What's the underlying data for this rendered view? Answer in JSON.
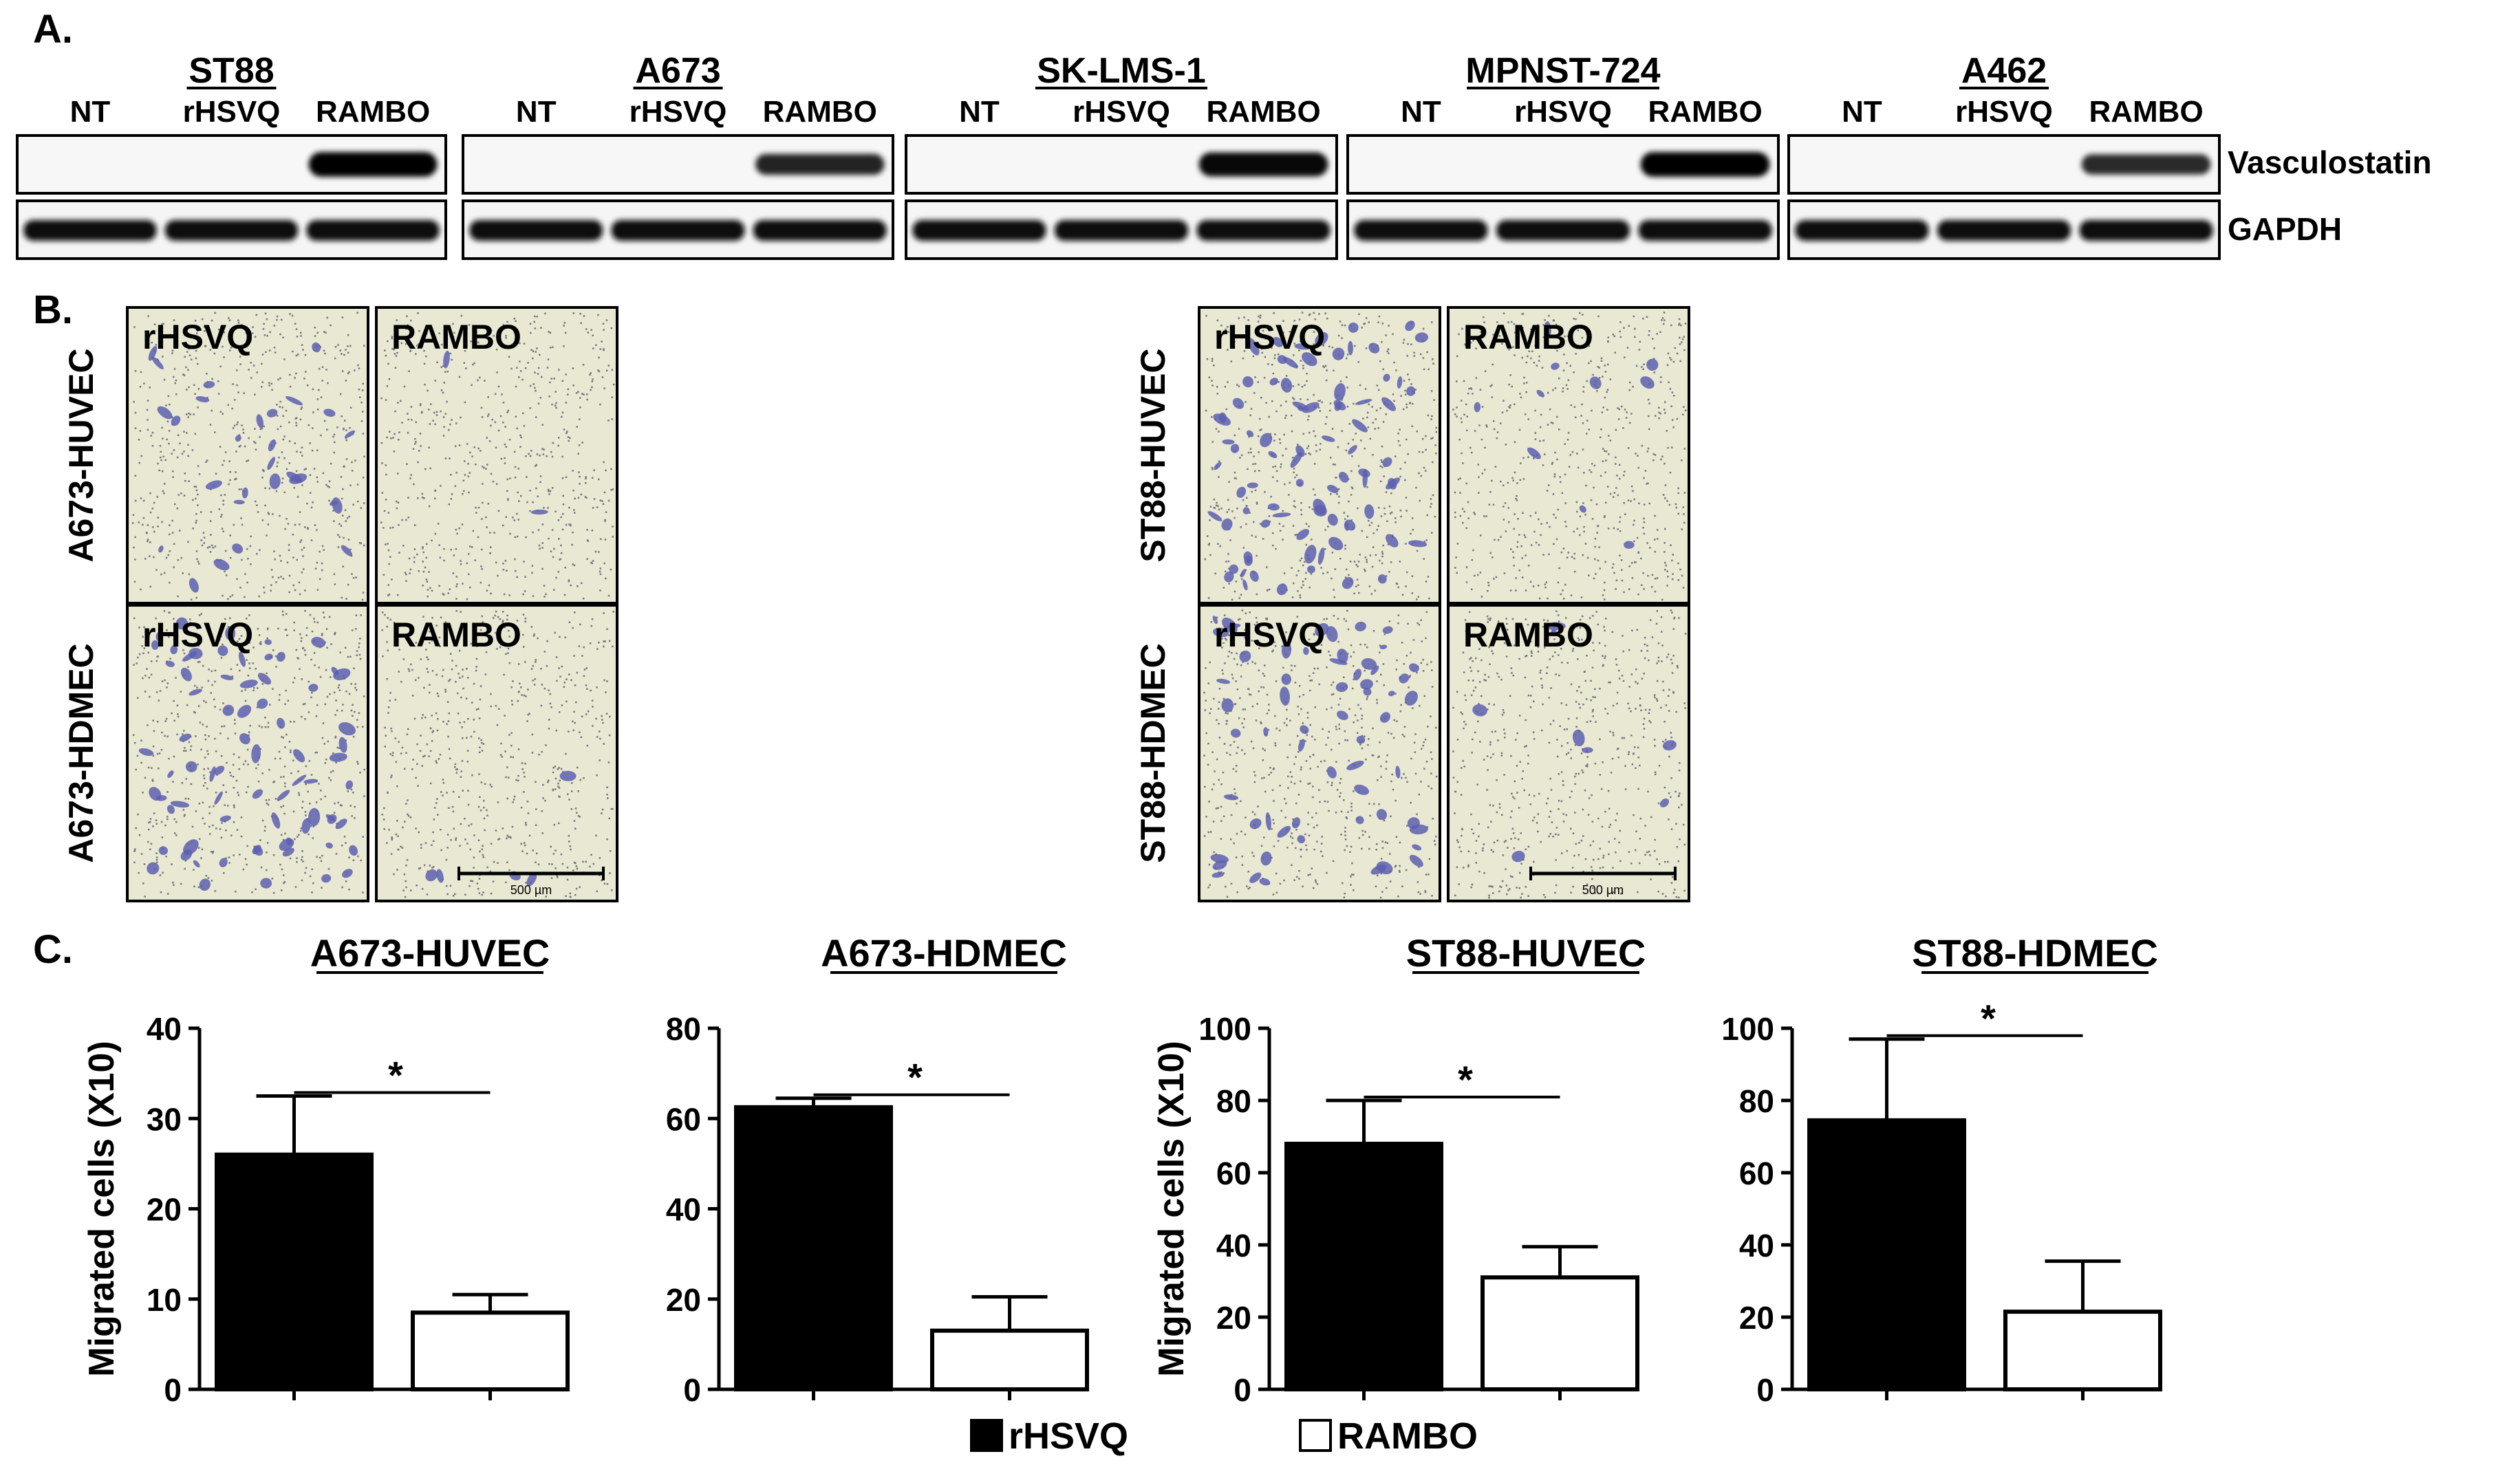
{
  "panel_a": {
    "letter": "A.",
    "blots": [
      {
        "cell_line": "ST88",
        "lanes": [
          "NT",
          "rHSVQ",
          "RAMBO"
        ],
        "vasculostatin_band": [
          0,
          0,
          1.0
        ]
      },
      {
        "cell_line": "A673",
        "lanes": [
          "NT",
          "rHSVQ",
          "RAMBO"
        ],
        "vasculostatin_band": [
          0,
          0,
          0.75
        ]
      },
      {
        "cell_line": "SK-LMS-1",
        "lanes": [
          "NT",
          "rHSVQ",
          "RAMBO"
        ],
        "vasculostatin_band": [
          0,
          0,
          0.95
        ]
      },
      {
        "cell_line": "MPNST-724",
        "lanes": [
          "NT",
          "rHSVQ",
          "RAMBO"
        ],
        "vasculostatin_band": [
          0,
          0,
          1.0
        ]
      },
      {
        "cell_line": "A462",
        "lanes": [
          "NT",
          "rHSVQ",
          "RAMBO"
        ],
        "vasculostatin_band": [
          0,
          0,
          0.7
        ]
      }
    ],
    "row_labels": [
      "Vasculostatin",
      "GAPDH"
    ]
  },
  "panel_b": {
    "letter": "B.",
    "groups": [
      {
        "rows": [
          {
            "label": "A673-HUVEC",
            "images": [
              {
                "label": "rHSVQ",
                "density": 0.35
              },
              {
                "label": "RAMBO",
                "density": 0.03
              }
            ]
          },
          {
            "label": "A673-HDMEC",
            "images": [
              {
                "label": "rHSVQ",
                "density": 0.9
              },
              {
                "label": "RAMBO",
                "density": 0.06
              }
            ]
          }
        ],
        "scale_bar": "500 µm"
      },
      {
        "rows": [
          {
            "label": "ST88-HUVEC",
            "images": [
              {
                "label": "rHSVQ",
                "density": 1.0
              },
              {
                "label": "RAMBO",
                "density": 0.12
              }
            ]
          },
          {
            "label": "ST88-HDMEC",
            "images": [
              {
                "label": "rHSVQ",
                "density": 0.75
              },
              {
                "label": "RAMBO",
                "density": 0.1
              }
            ]
          }
        ],
        "scale_bar": "500 µm"
      }
    ]
  },
  "panel_c": {
    "letter": "C.",
    "significance": "*"
  },
  "legend": [
    {
      "label": "rHSVQ",
      "color": "#000000"
    },
    {
      "label": "RAMBO",
      "color": "#ffffff"
    }
  ],
  "chart_data": [
    {
      "type": "bar",
      "title": "A673-HUVEC",
      "ylabel": "Migrated cells (X10)",
      "categories": [
        "rHSVQ",
        "RAMBO"
      ],
      "values": [
        26,
        8.5
      ],
      "error": [
        6.5,
        2
      ],
      "ylim": [
        0,
        40
      ],
      "yticks": [
        0,
        10,
        20,
        30,
        40
      ]
    },
    {
      "type": "bar",
      "title": "A673-HDMEC",
      "ylabel": "",
      "categories": [
        "rHSVQ",
        "RAMBO"
      ],
      "values": [
        62.5,
        13
      ],
      "error": [
        2,
        7.5
      ],
      "ylim": [
        0,
        80
      ],
      "yticks": [
        0,
        20,
        40,
        60,
        80
      ]
    },
    {
      "type": "bar",
      "title": "ST88-HUVEC",
      "ylabel": "Migrated cells (X10)",
      "categories": [
        "rHSVQ",
        "RAMBO"
      ],
      "values": [
        68,
        31
      ],
      "error": [
        12,
        8.5
      ],
      "ylim": [
        0,
        100
      ],
      "yticks": [
        0,
        20,
        40,
        60,
        80,
        100
      ]
    },
    {
      "type": "bar",
      "title": "ST88-HDMEC",
      "ylabel": "",
      "categories": [
        "rHSVQ",
        "RAMBO"
      ],
      "values": [
        74.5,
        21.5
      ],
      "error": [
        22.5,
        14
      ],
      "ylim": [
        0,
        100
      ],
      "yticks": [
        0,
        20,
        40,
        60,
        80,
        100
      ]
    }
  ]
}
